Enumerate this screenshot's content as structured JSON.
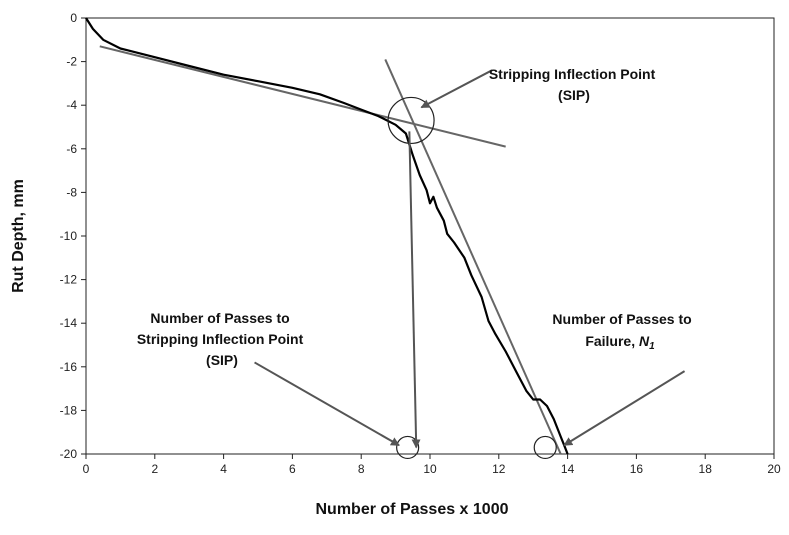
{
  "chart_data": {
    "type": "line",
    "xlabel": "Number of Passes x 1000",
    "ylabel": "Rut Depth, mm",
    "xlim": [
      0,
      20
    ],
    "ylim": [
      -20,
      0
    ],
    "xticks": [
      0,
      2,
      4,
      6,
      8,
      10,
      12,
      14,
      16,
      18,
      20
    ],
    "yticks": [
      0,
      -2,
      -4,
      -6,
      -8,
      -10,
      -12,
      -14,
      -16,
      -18,
      -20
    ],
    "grid": false,
    "series": [
      {
        "x": [
          0,
          0.2,
          0.5,
          1,
          2,
          3,
          4,
          5,
          6,
          6.8,
          7.5,
          8,
          8.5,
          9,
          9.3,
          9.5,
          9.7,
          9.9,
          10.0,
          10.1,
          10.2,
          10.4,
          10.5,
          10.7,
          11.0,
          11.2,
          11.5,
          11.7,
          11.9,
          12.2,
          12.5,
          12.8,
          13.0,
          13.2,
          13.4,
          13.6,
          13.8,
          13.9,
          14.0
        ],
        "y": [
          0,
          -0.5,
          -1.0,
          -1.4,
          -1.8,
          -2.2,
          -2.6,
          -2.9,
          -3.2,
          -3.5,
          -3.9,
          -4.2,
          -4.5,
          -4.9,
          -5.3,
          -6.3,
          -7.2,
          -7.9,
          -8.5,
          -8.2,
          -8.7,
          -9.3,
          -9.9,
          -10.3,
          -11.0,
          -11.8,
          -12.8,
          -13.9,
          -14.5,
          -15.3,
          -16.2,
          -17.1,
          -17.5,
          -17.5,
          -17.8,
          -18.4,
          -19.2,
          -19.6,
          -20.0
        ]
      }
    ],
    "tangent_lines": [
      {
        "x": [
          0.4,
          12.2
        ],
        "y": [
          -1.3,
          -5.9
        ]
      },
      {
        "x": [
          8.7,
          13.8
        ],
        "y": [
          -1.9,
          -20.0
        ]
      }
    ],
    "circles": [
      {
        "x": 9.45,
        "y": -4.7
      },
      {
        "x": 9.35,
        "y": -19.7
      },
      {
        "x": 13.35,
        "y": -19.7
      }
    ],
    "pointer_arrows": [
      {
        "from": [
          11.8,
          -2.4
        ],
        "to": [
          9.75,
          -4.1
        ]
      },
      {
        "from": [
          9.4,
          -5.2
        ],
        "to": [
          9.6,
          -19.7
        ]
      },
      {
        "from": [
          4.9,
          -15.8
        ],
        "to": [
          9.1,
          -19.6
        ]
      },
      {
        "from": [
          17.4,
          -16.2
        ],
        "to": [
          13.9,
          -19.6
        ]
      }
    ],
    "annotations": [
      {
        "lines": [
          "Stripping Inflection Point",
          "(SIP)"
        ]
      },
      {
        "lines": [
          "Number of Passes to",
          "Stripping Inflection Point",
          "(SIP)"
        ]
      },
      {
        "lines": [
          "Number of Passes to",
          "Failure, "
        ],
        "italic": "N",
        "subscript": "1"
      }
    ]
  }
}
